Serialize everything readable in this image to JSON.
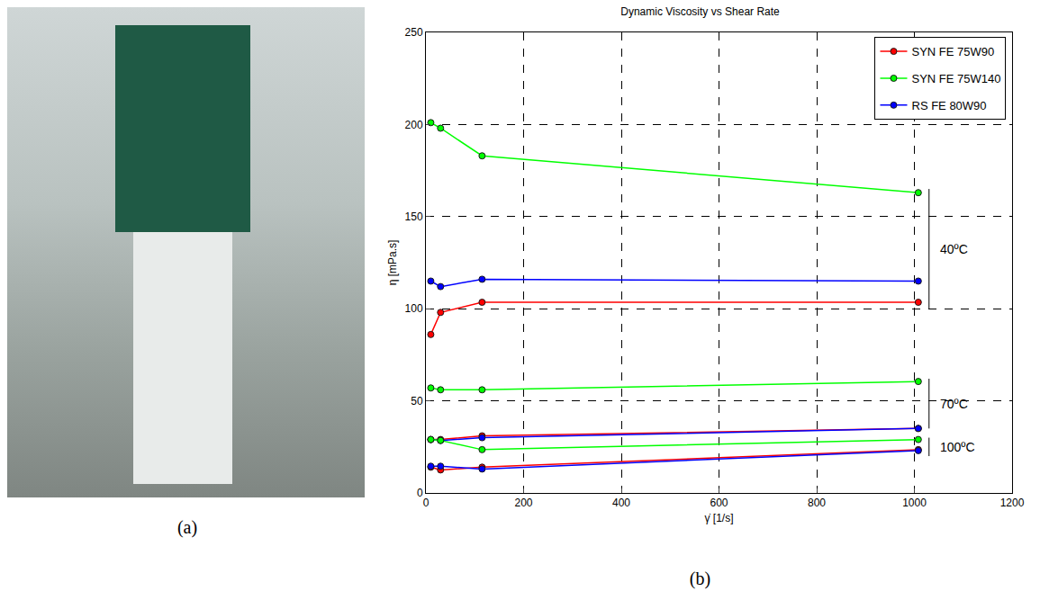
{
  "captions": [
    "(a)",
    "(b)"
  ],
  "chart_data": {
    "type": "line",
    "title": "Dynamic Viscosity vs Shear Rate",
    "x_label": "γ̇ [1/s]",
    "y_label": "η [mPa.s]",
    "xlim": [
      0,
      1200
    ],
    "xticks": [
      0,
      200,
      400,
      600,
      800,
      1000,
      1200
    ],
    "ylim": [
      0,
      250
    ],
    "yticks": [
      0,
      50,
      100,
      150,
      200,
      250
    ],
    "grid": true,
    "legend": "top right",
    "marker": "circle",
    "series": [
      {
        "name": "SYN FE 75W90",
        "color": "#ff0000",
        "x": [
          10,
          30,
          115,
          1008
        ],
        "values": [
          86,
          98,
          103.5,
          103.5
        ]
      },
      {
        "name": "SYN FE 75W140",
        "color": "#00ff00",
        "x": [
          10,
          30,
          115,
          1008
        ],
        "values": [
          201,
          198,
          183,
          163
        ]
      },
      {
        "name": "RS FE 80W90",
        "color": "#0000ff",
        "x": [
          10,
          30,
          115,
          1008
        ],
        "values": [
          115,
          112,
          116,
          115
        ]
      },
      {
        "name": "SYN FE 75W90",
        "color": "#ff0000",
        "x": [
          10,
          30,
          115,
          1008
        ],
        "values": [
          29,
          29,
          31,
          35
        ]
      },
      {
        "name": "SYN FE 75W140",
        "color": "#00ff00",
        "x": [
          10,
          30,
          115,
          1008
        ],
        "values": [
          57,
          56,
          56,
          60.5
        ]
      },
      {
        "name": "RS FE 80W90",
        "color": "#0000ff",
        "x": [
          10,
          30,
          115,
          1008
        ],
        "values": [
          29,
          28.5,
          30,
          35
        ]
      },
      {
        "name": "SYN FE 75W90",
        "color": "#ff0000",
        "x": [
          10,
          30,
          115,
          1008
        ],
        "values": [
          14,
          12.5,
          14,
          23.5
        ]
      },
      {
        "name": "SYN FE 75W140",
        "color": "#00ff00",
        "x": [
          10,
          30,
          115,
          1008
        ],
        "values": [
          29,
          28.5,
          23.5,
          29
        ]
      },
      {
        "name": "RS FE 80W90",
        "color": "#0000ff",
        "x": [
          10,
          30,
          115,
          1008
        ],
        "values": [
          14.5,
          14.5,
          13,
          23
        ]
      }
    ],
    "annotations": [
      {
        "text": "40ºC",
        "x": 1030,
        "y": [
          100,
          165
        ]
      },
      {
        "text": "70ºC",
        "x": 1030,
        "y": [
          35,
          62
        ]
      },
      {
        "text": "100ºC",
        "x": 1030,
        "y": [
          20,
          30
        ]
      }
    ]
  }
}
